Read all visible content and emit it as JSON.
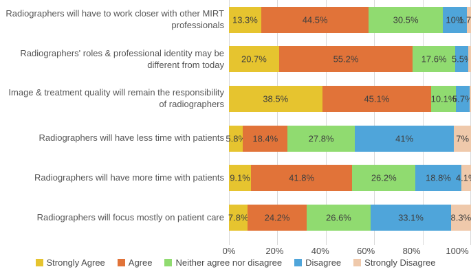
{
  "chart_data": {
    "type": "bar",
    "subtype": "horizontal-stacked-100",
    "title": "",
    "xlabel": "",
    "ylabel": "",
    "xlim": [
      0,
      100
    ],
    "grid": true,
    "legend_position": "bottom",
    "x_tick_labels": [
      "0%",
      "20%",
      "40%",
      "60%",
      "80%",
      "100%"
    ],
    "x_tick_values": [
      0,
      20,
      40,
      60,
      80,
      100
    ],
    "series": [
      {
        "name": "Strongly Agree",
        "color": "#E6C42F"
      },
      {
        "name": "Agree",
        "color": "#E17339"
      },
      {
        "name": "Neither agree nor disagree",
        "color": "#90DB70"
      },
      {
        "name": "Disagree",
        "color": "#4FA5DA"
      },
      {
        "name": "Strongly Disagree",
        "color": "#EFC9AB"
      }
    ],
    "categories": [
      {
        "label": "Radiographers will have to work closer with other MIRT professionals",
        "values": [
          13.3,
          44.5,
          30.5,
          10,
          1.7
        ],
        "labels": [
          "13.3%",
          "44.5%",
          "30.5%",
          "10%",
          "1.7%"
        ]
      },
      {
        "label": "Radiographers' roles & professional identity may be different from today",
        "values": [
          20.7,
          55.2,
          17.6,
          5.5,
          1.0
        ],
        "labels": [
          "20.7%",
          "55.2%",
          "17.6%",
          "5.5%",
          ""
        ]
      },
      {
        "label": "Image & treatment quality will remain the responsibility of radiographers",
        "values": [
          38.5,
          45.1,
          10.1,
          5.7,
          0.6
        ],
        "labels": [
          "38.5%",
          "45.1%",
          "10.1%",
          "5.7%",
          ""
        ]
      },
      {
        "label": "Radiographers will have less time with patients",
        "values": [
          5.8,
          18.4,
          27.8,
          41,
          7
        ],
        "labels": [
          "5.8%",
          "18.4%",
          "27.8%",
          "41%",
          "7%"
        ]
      },
      {
        "label": "Radiographers will have more time with patients",
        "values": [
          9.1,
          41.8,
          26.2,
          18.8,
          4.1
        ],
        "labels": [
          "9.1%",
          "41.8%",
          "26.2%",
          "18.8%",
          "4.1%"
        ]
      },
      {
        "label": "Radiographers will focus mostly on patient care",
        "values": [
          7.8,
          24.2,
          26.6,
          33.1,
          8.3
        ],
        "labels": [
          "7.8%",
          "24.2%",
          "26.6%",
          "33.1%",
          "8.3%"
        ]
      }
    ],
    "colors": {
      "gridline": "#D9D9D9",
      "tick": "#D9D9D9",
      "category_text": "#555555",
      "data_label_text": "#3F3F3F",
      "axis_text": "#4A4A4A",
      "background": "#FFFFFF"
    }
  }
}
